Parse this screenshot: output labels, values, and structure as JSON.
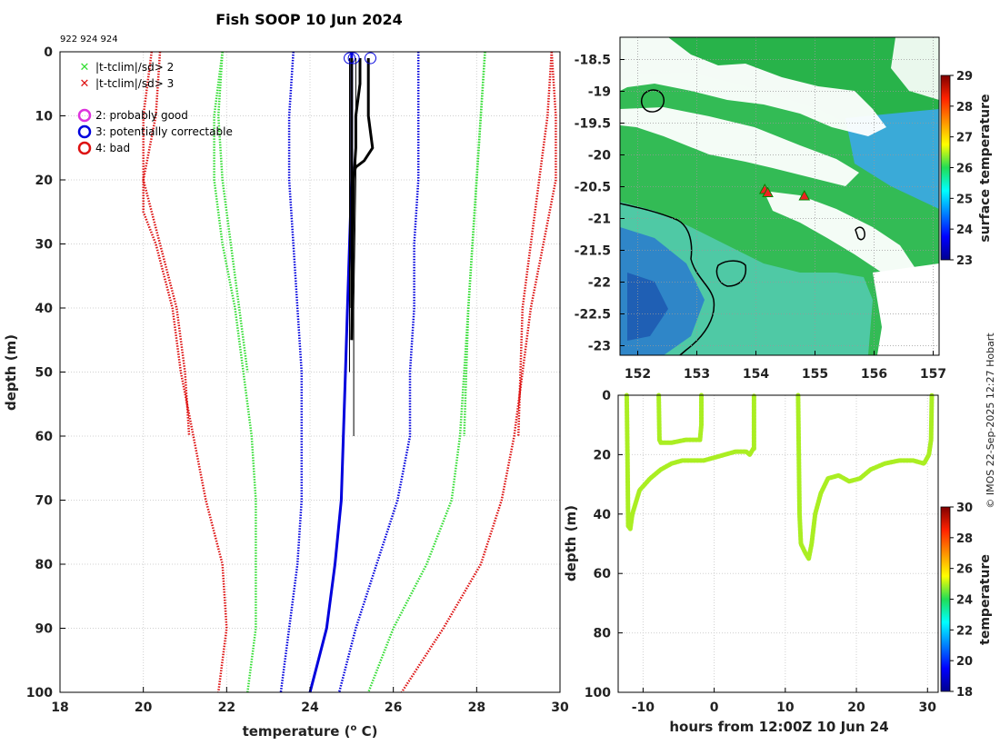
{
  "figure": {
    "title": "Fish SOOP 10 Jun 2024",
    "ids": "922 924 924",
    "credit": "© IMOS 22-Sep-2025 12:27 Hobart"
  },
  "colors": {
    "green": "#33dd33",
    "red": "#dd1111",
    "blue": "#0000dd",
    "magenta": "#dd33dd",
    "black": "#000000",
    "limegreen": "#aaee22"
  },
  "chart_data": [
    {
      "id": "profile",
      "type": "line",
      "xlabel": "temperature (",
      "xlabel_sup": "o",
      "xlabel_tail": " C)",
      "ylabel": "depth (m)",
      "xlim": [
        18,
        30
      ],
      "ylim": [
        0,
        100
      ],
      "y_reversed": true,
      "xticks": [
        "18",
        "20",
        "22",
        "24",
        "26",
        "28",
        "30"
      ],
      "yticks": [
        "0",
        "10",
        "20",
        "30",
        "40",
        "50",
        "60",
        "70",
        "80",
        "90",
        "100"
      ],
      "legend": [
        {
          "label": "|t-tclim|/sd> 2",
          "marker": "x",
          "color": "#33dd33"
        },
        {
          "label": "|t-tclim|/sd> 3",
          "marker": "x",
          "color": "#dd1111"
        },
        {
          "label": "2: probably good",
          "marker": "o",
          "color": "#dd33dd"
        },
        {
          "label": "3: potentially correctable",
          "marker": "o",
          "color": "#0000dd"
        },
        {
          "label": "4: bad",
          "marker": "o",
          "color": "#dd1111"
        }
      ],
      "series": [
        {
          "name": "red-left",
          "style": "dotted",
          "color": "#dd1111",
          "x": [
            20.4,
            20.3,
            20.0,
            20.0,
            20.3,
            20.7,
            20.9,
            21.2,
            21.5,
            21.9,
            22.0,
            21.8
          ],
          "y": [
            0,
            10,
            20,
            25,
            30,
            40,
            50,
            60,
            70,
            80,
            90,
            100
          ]
        },
        {
          "name": "red-left-b",
          "style": "dotted",
          "color": "#dd1111",
          "x": [
            20.2,
            20.0,
            20.0,
            20.4,
            20.8,
            21.0,
            21.1
          ],
          "y": [
            0,
            10,
            20,
            30,
            40,
            50,
            60
          ]
        },
        {
          "name": "green-left",
          "style": "dotted",
          "color": "#33dd33",
          "x": [
            21.9,
            21.7,
            21.7,
            21.9,
            22.2,
            22.4,
            22.6,
            22.7,
            22.7,
            22.7,
            22.5
          ],
          "y": [
            0,
            10,
            20,
            30,
            40,
            50,
            60,
            70,
            80,
            90,
            100
          ]
        },
        {
          "name": "green-left-b",
          "style": "dotted",
          "color": "#33dd33",
          "x": [
            21.9,
            21.8,
            21.9,
            22.1,
            22.3,
            22.5
          ],
          "y": [
            0,
            10,
            20,
            30,
            40,
            50
          ]
        },
        {
          "name": "blue-left",
          "style": "dotted",
          "color": "#0000dd",
          "x": [
            23.6,
            23.5,
            23.5,
            23.6,
            23.7,
            23.8,
            23.8,
            23.8,
            23.7,
            23.5,
            23.3
          ],
          "y": [
            0,
            10,
            20,
            30,
            40,
            50,
            60,
            70,
            80,
            90,
            100
          ]
        },
        {
          "name": "blue-right",
          "style": "dotted",
          "color": "#0000dd",
          "x": [
            26.6,
            26.6,
            26.6,
            26.5,
            26.5,
            26.4,
            26.4,
            26.1,
            25.6,
            25.1,
            24.7
          ],
          "y": [
            0,
            10,
            20,
            30,
            40,
            50,
            60,
            70,
            80,
            90,
            100
          ]
        },
        {
          "name": "green-right",
          "style": "dotted",
          "color": "#33dd33",
          "x": [
            28.2,
            28.1,
            28.0,
            27.9,
            27.8,
            27.7,
            27.6,
            27.4,
            26.8,
            26.0,
            25.4
          ],
          "y": [
            0,
            10,
            20,
            30,
            40,
            50,
            60,
            70,
            80,
            90,
            100
          ]
        },
        {
          "name": "green-right-b",
          "style": "dotted",
          "color": "#33dd33",
          "x": [
            28.2,
            28.1,
            28.0,
            27.9,
            27.8,
            27.7
          ],
          "y": [
            0,
            10,
            20,
            30,
            40,
            60
          ]
        },
        {
          "name": "red-right",
          "style": "dotted",
          "color": "#dd1111",
          "x": [
            29.8,
            29.9,
            29.9,
            29.6,
            29.3,
            29.1,
            28.9,
            28.6,
            28.1,
            27.2,
            26.2
          ],
          "y": [
            0,
            10,
            20,
            30,
            40,
            50,
            60,
            70,
            80,
            90,
            100
          ]
        },
        {
          "name": "red-right-b",
          "style": "dotted",
          "color": "#dd1111",
          "x": [
            29.8,
            29.7,
            29.5,
            29.3,
            29.1,
            29.0
          ],
          "y": [
            0,
            10,
            20,
            30,
            40,
            60
          ]
        },
        {
          "name": "profile-blue",
          "style": "solid",
          "color": "#0000dd",
          "x": [
            25.0,
            25.0,
            25.0,
            24.95,
            24.9,
            24.85,
            24.8,
            24.75,
            24.6,
            24.4,
            24.2,
            24.0
          ],
          "y": [
            0,
            10,
            20,
            30,
            40,
            50,
            60,
            70,
            80,
            90,
            95,
            100
          ]
        },
        {
          "name": "profile-black-1",
          "style": "solid",
          "color": "#000000",
          "x": [
            25.4,
            25.4,
            25.4,
            25.5,
            25.4,
            25.3,
            25.1,
            25.0
          ],
          "y": [
            1,
            5,
            10,
            15,
            16,
            17,
            18,
            20
          ]
        },
        {
          "name": "profile-black-2",
          "style": "solid",
          "color": "#000000",
          "x": [
            25.2,
            25.2,
            25.1,
            25.1,
            25.05,
            25.0
          ],
          "y": [
            1,
            5,
            10,
            15,
            20,
            45
          ]
        },
        {
          "name": "profile-black-3",
          "style": "solid",
          "color": "#000000",
          "x": [
            25.0,
            25.0,
            25.0,
            25.0,
            25.0
          ],
          "y": [
            1,
            10,
            20,
            30,
            40
          ]
        },
        {
          "name": "profile-thin-1",
          "style": "solid-thin",
          "color": "#000000",
          "x": [
            25.1,
            25.1,
            25.05,
            25.05
          ],
          "y": [
            1,
            20,
            40,
            60
          ]
        },
        {
          "name": "profile-thin-2",
          "style": "solid-thin",
          "color": "#000000",
          "x": [
            24.95,
            24.95,
            24.95
          ],
          "y": [
            1,
            30,
            50
          ]
        }
      ],
      "flags": [
        {
          "x": 24.95,
          "y": 1,
          "color": "#0000dd"
        },
        {
          "x": 25.05,
          "y": 1,
          "color": "#0000dd"
        },
        {
          "x": 25.45,
          "y": 1,
          "color": "#0000dd"
        }
      ]
    },
    {
      "id": "map",
      "type": "heatmap",
      "xlim": [
        151.7,
        157.1
      ],
      "ylim": [
        -23.15,
        -18.15
      ],
      "xticks": [
        "152",
        "153",
        "154",
        "155",
        "156",
        "157"
      ],
      "yticks": [
        "-18.5",
        "-19",
        "-19.5",
        "-20",
        "-20.5",
        "-21",
        "-21.5",
        "-22",
        "-22.5",
        "-23"
      ],
      "colorbar": {
        "label": "surface temperature",
        "range": [
          23,
          29
        ],
        "ticks": [
          "23",
          "24",
          "25",
          "26",
          "27",
          "28",
          "29"
        ]
      },
      "markers": [
        {
          "lon": 154.15,
          "lat": -20.55
        },
        {
          "lon": 154.2,
          "lat": -20.6
        },
        {
          "lon": 154.82,
          "lat": -20.65
        }
      ]
    },
    {
      "id": "timeseries",
      "type": "scatter",
      "xlabel": "hours from 12:00Z 10 Jun 24",
      "ylabel": "depth (m)",
      "xlim": [
        -13.5,
        31.5
      ],
      "ylim": [
        0,
        100
      ],
      "y_reversed": true,
      "xticks": [
        "-10",
        "0",
        "10",
        "20",
        "30"
      ],
      "yticks": [
        "0",
        "20",
        "40",
        "60",
        "80",
        "100"
      ],
      "colorbar": {
        "label": "temperature",
        "range": [
          18,
          30
        ],
        "ticks": [
          "18",
          "20",
          "22",
          "24",
          "26",
          "28",
          "30"
        ]
      },
      "segments": [
        {
          "t": [
            -12.3,
            -12.2,
            -12.1,
            -11.8,
            -11.5,
            -10.5,
            -9.0,
            -7.5,
            -6.0,
            -4.5,
            -3.0,
            -1.5,
            0,
            1.5,
            3.0,
            4.5,
            5.0,
            5.5
          ],
          "d": [
            0,
            20,
            44,
            45,
            40,
            32,
            28,
            25,
            23,
            22,
            22,
            22,
            21,
            20,
            19,
            19,
            20,
            18
          ]
        },
        {
          "t": [
            5.6,
            5.6,
            5.6
          ],
          "d": [
            18,
            8,
            0
          ]
        },
        {
          "t": [
            -7.8,
            -7.7,
            -7.5,
            -6.0,
            -4.0,
            -2.0,
            -1.8,
            -1.8
          ],
          "d": [
            0,
            15,
            16,
            16,
            15,
            15,
            10,
            0
          ]
        },
        {
          "t": [
            11.8,
            11.9,
            12.0,
            12.2,
            12.8,
            13.3,
            13.7,
            14.2,
            15.0,
            16.0,
            17.5,
            19.0,
            20.5,
            22.0,
            24.0,
            26.0,
            28.0,
            29.5,
            30.2,
            30.5,
            30.6
          ],
          "d": [
            0,
            20,
            40,
            50,
            53,
            55,
            50,
            40,
            33,
            28,
            27,
            29,
            28,
            25,
            23,
            22,
            22,
            23,
            20,
            15,
            0
          ]
        }
      ]
    }
  ]
}
